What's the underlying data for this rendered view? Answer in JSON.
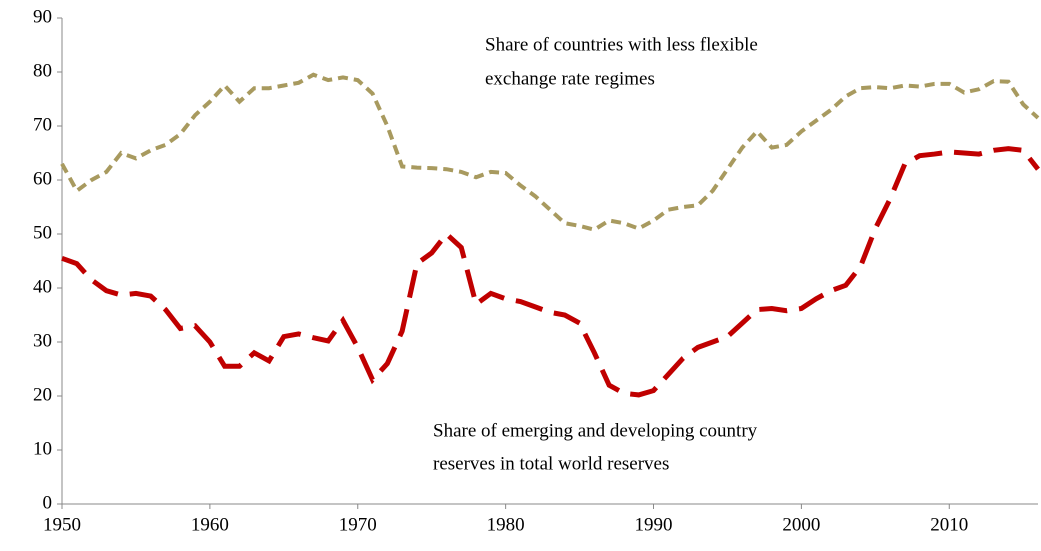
{
  "chart_data": {
    "type": "line",
    "x": [
      1950,
      1951,
      1952,
      1953,
      1954,
      1955,
      1956,
      1957,
      1958,
      1959,
      1960,
      1961,
      1962,
      1963,
      1964,
      1965,
      1966,
      1967,
      1968,
      1969,
      1970,
      1971,
      1972,
      1973,
      1974,
      1975,
      1976,
      1977,
      1978,
      1979,
      1980,
      1981,
      1982,
      1983,
      1984,
      1985,
      1986,
      1987,
      1988,
      1989,
      1990,
      1991,
      1992,
      1993,
      1994,
      1995,
      1996,
      1997,
      1998,
      1999,
      2000,
      2001,
      2002,
      2003,
      2004,
      2005,
      2006,
      2007,
      2008,
      2009,
      2010,
      2011,
      2012,
      2013,
      2014,
      2015,
      2016
    ],
    "series": [
      {
        "color": "#a89a5f",
        "values": [
          63,
          58,
          60,
          61.5,
          65,
          64,
          65.5,
          66.5,
          68.5,
          72,
          74.5,
          77.5,
          74.5,
          77,
          77,
          77.5,
          78,
          79.5,
          78.5,
          79,
          78.5,
          76,
          70,
          62.5,
          62.3,
          62.2,
          62,
          61.5,
          60.5,
          61.5,
          61.3,
          59,
          57,
          54.5,
          52,
          51.5,
          50.8,
          52.5,
          52,
          51,
          52.5,
          54.5,
          55,
          55.3,
          58,
          62,
          66,
          69,
          66,
          66.5,
          69,
          71,
          73,
          75.5,
          77,
          77.2,
          77,
          77.5,
          77.3,
          77.8,
          77.8,
          76.2,
          76.8,
          78.3,
          78.2,
          74,
          71.5
        ]
      },
      {
        "color": "#c00000",
        "values": [
          45.5,
          44.5,
          41.5,
          39.5,
          38.7,
          39,
          38.5,
          36,
          32.5,
          33,
          30,
          25.5,
          25.5,
          28,
          26.5,
          31,
          31.5,
          30.8,
          30.2,
          34,
          29,
          23,
          26,
          32,
          44.5,
          46.5,
          50,
          47.5,
          37,
          39,
          38,
          37.5,
          36.5,
          35.5,
          35,
          33.5,
          28,
          22,
          20.5,
          20.2,
          21,
          24,
          27,
          29,
          30,
          31,
          33.5,
          36,
          36.2,
          35.8,
          36.2,
          38,
          39.5,
          40.5,
          44,
          51,
          56.5,
          63,
          64.5,
          64.8,
          65.2,
          65,
          64.8,
          65.5,
          65.8,
          65.5,
          62
        ]
      }
    ],
    "annotations": [
      {
        "lines": [
          "Share of countries with less flexible",
          "exchange rate regimes"
        ]
      },
      {
        "lines": [
          "Share of emerging and developing country",
          "reserves in total world reserves"
        ]
      }
    ],
    "xlim": [
      1950,
      2016
    ],
    "xticks": [
      1950,
      1960,
      1970,
      1980,
      1990,
      2000,
      2010
    ],
    "ylim": [
      0,
      90
    ],
    "yticks": [
      0,
      10,
      20,
      30,
      40,
      50,
      60,
      70,
      80,
      90
    ]
  }
}
